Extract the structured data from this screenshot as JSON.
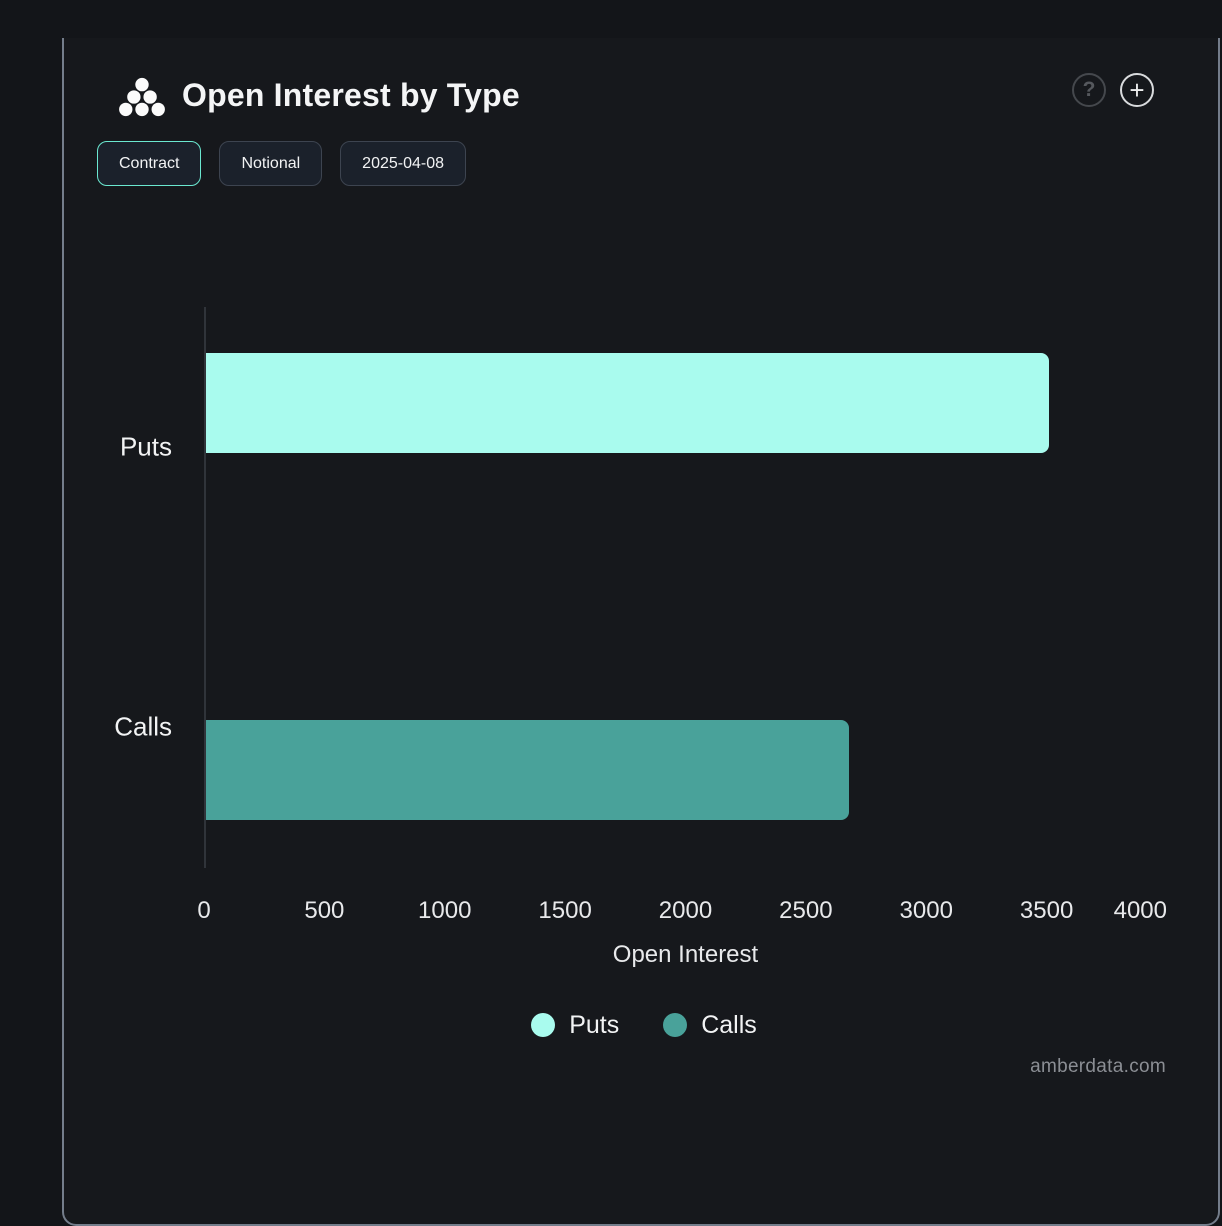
{
  "header": {
    "title": "Open Interest by Type"
  },
  "icons": {
    "help_glyph": "?",
    "add_glyph": "+"
  },
  "toolbar": {
    "buttons": [
      {
        "label": "Contract",
        "active": true
      },
      {
        "label": "Notional",
        "active": false
      },
      {
        "label": "2025-04-08",
        "active": false
      }
    ]
  },
  "chart_data": {
    "type": "bar",
    "orientation": "horizontal",
    "title": "Open Interest by Type",
    "categories": [
      "Puts",
      "Calls"
    ],
    "series": [
      {
        "name": "Puts",
        "color": "#a9fbee",
        "values": [
          3500,
          null
        ]
      },
      {
        "name": "Calls",
        "color": "#49a29a",
        "values": [
          null,
          2670
        ]
      }
    ],
    "xlabel": "Open Interest",
    "ylabel": "",
    "xlim": [
      0,
      4000
    ],
    "x_ticks": [
      0,
      500,
      1000,
      1500,
      2000,
      2500,
      3000,
      3500,
      4000
    ],
    "grid": false,
    "legend": {
      "position": "bottom",
      "items": [
        {
          "label": "Puts",
          "color": "#a9fbee"
        },
        {
          "label": "Calls",
          "color": "#49a29a"
        }
      ]
    }
  },
  "watermark": "amberdata.com",
  "colors": {
    "page_bg": "#131519",
    "card_bg": "#16181c",
    "card_border": "#747d8b",
    "accent_teal": "#6be8d0",
    "puts_bar": "#a9fbee",
    "calls_bar": "#49a29a"
  }
}
